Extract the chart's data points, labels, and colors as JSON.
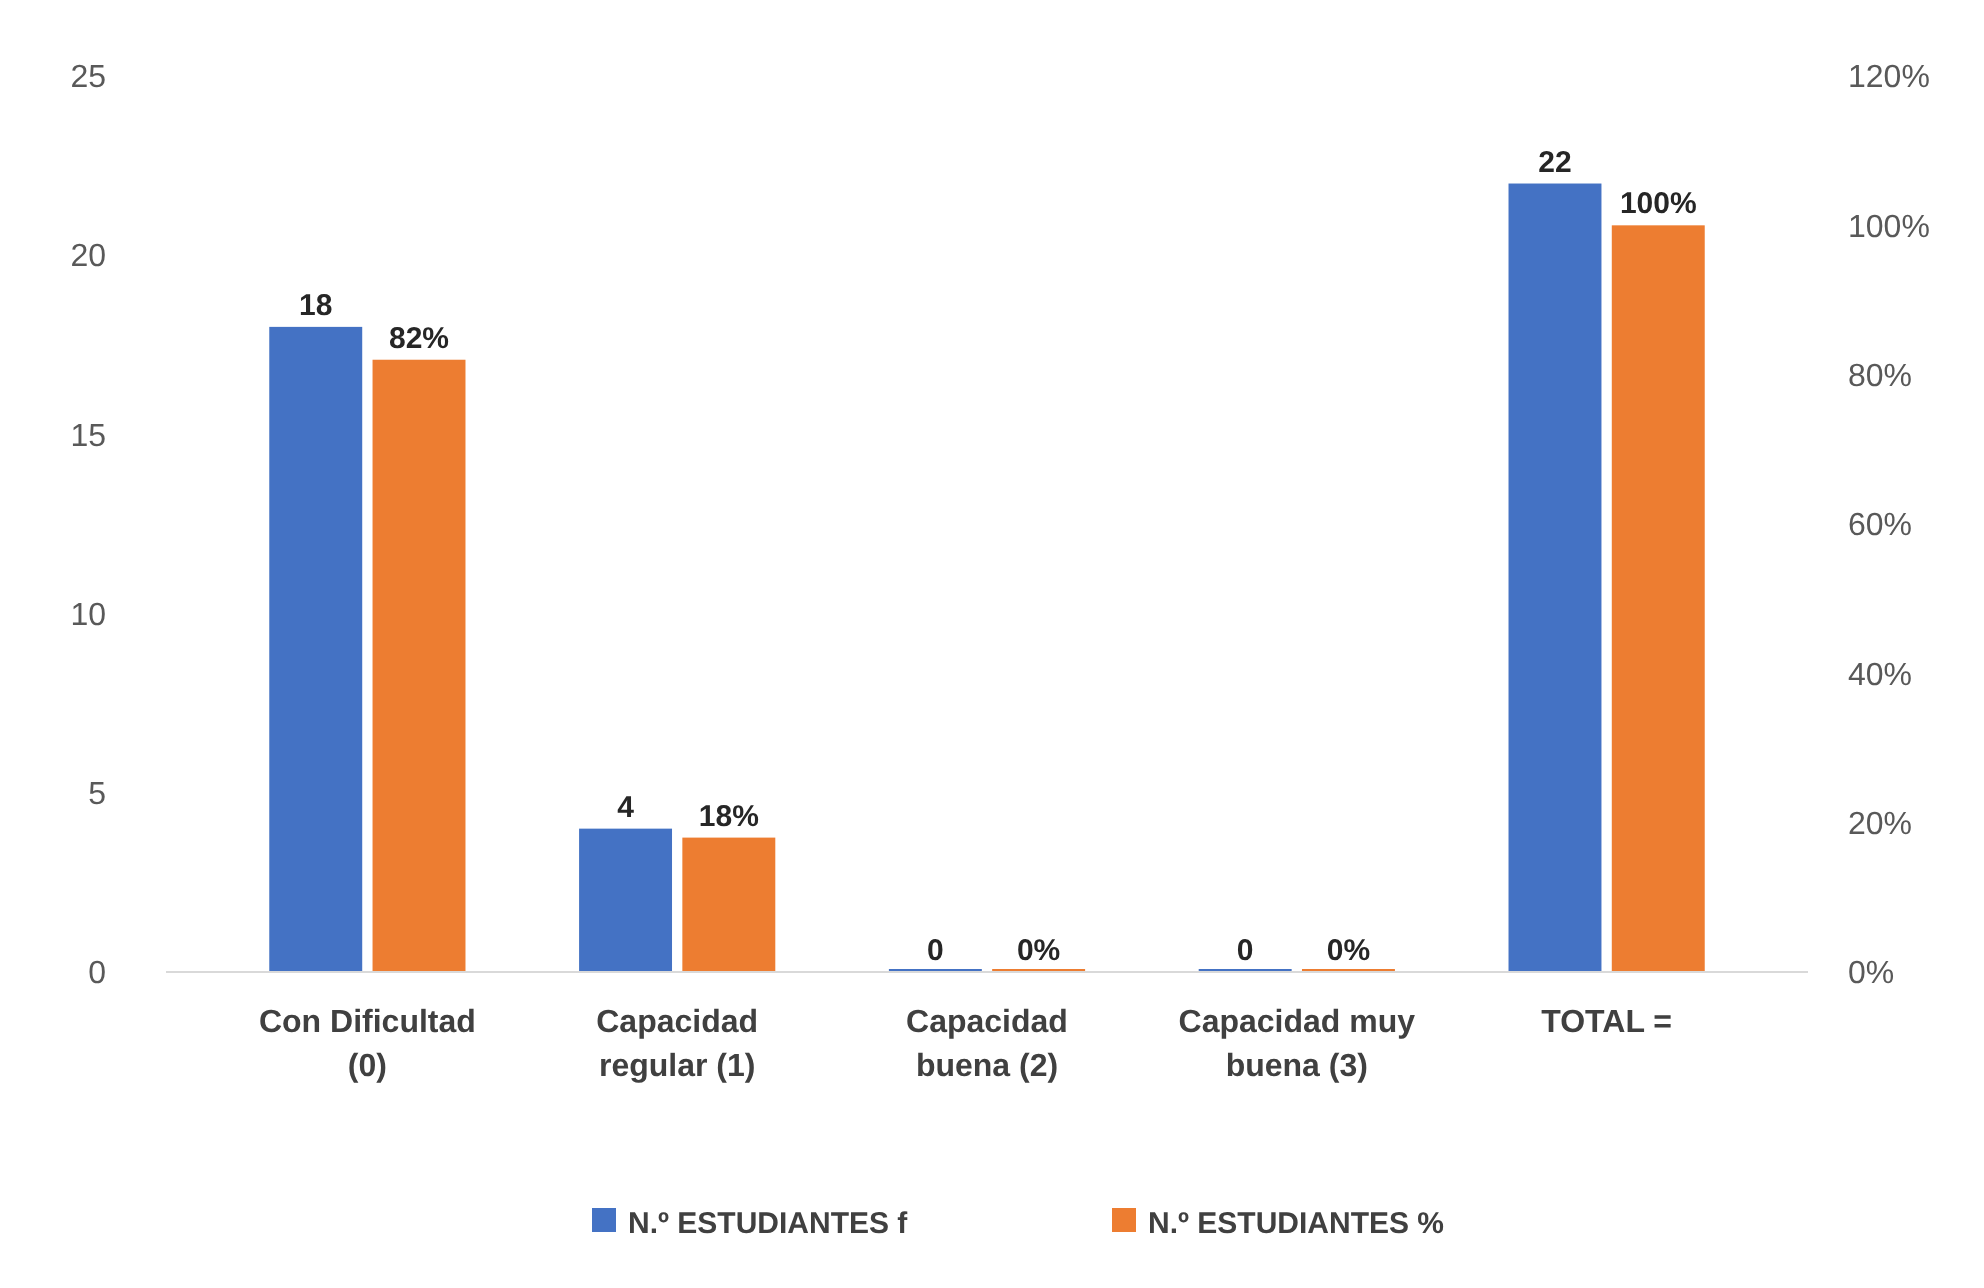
{
  "chart_data": {
    "type": "bar",
    "categories": [
      "Con Dificultad (0)",
      "Capacidad regular (1)",
      "Capacidad buena (2)",
      "Capacidad muy buena (3)",
      "TOTAL ="
    ],
    "series": [
      {
        "name": "N.º ESTUDIANTES f",
        "color": "#4472c4",
        "values": [
          18,
          4,
          0,
          0,
          22
        ],
        "value_labels": [
          "18",
          "4",
          "0",
          "0",
          "22"
        ]
      },
      {
        "name": "N.º ESTUDIANTES %",
        "color": "#ed7d31",
        "axis": "y2",
        "values": [
          82,
          18,
          0,
          0,
          100
        ],
        "value_labels": [
          "82%",
          "18%",
          "0%",
          "0%",
          "100%"
        ]
      }
    ],
    "ylim": [
      0,
      25
    ],
    "yticks": [
      0,
      5,
      10,
      15,
      20,
      25
    ],
    "y2lim": [
      0,
      120
    ],
    "y2ticks": [
      {
        "value": 0,
        "label": "0%"
      },
      {
        "value": 20,
        "label": "20%"
      },
      {
        "value": 40,
        "label": "40%"
      },
      {
        "value": 60,
        "label": "60%"
      },
      {
        "value": 80,
        "label": "80%"
      },
      {
        "value": 100,
        "label": "100%"
      },
      {
        "value": 120,
        "label": "120%"
      }
    ],
    "grid": false,
    "legend": "bottom"
  }
}
